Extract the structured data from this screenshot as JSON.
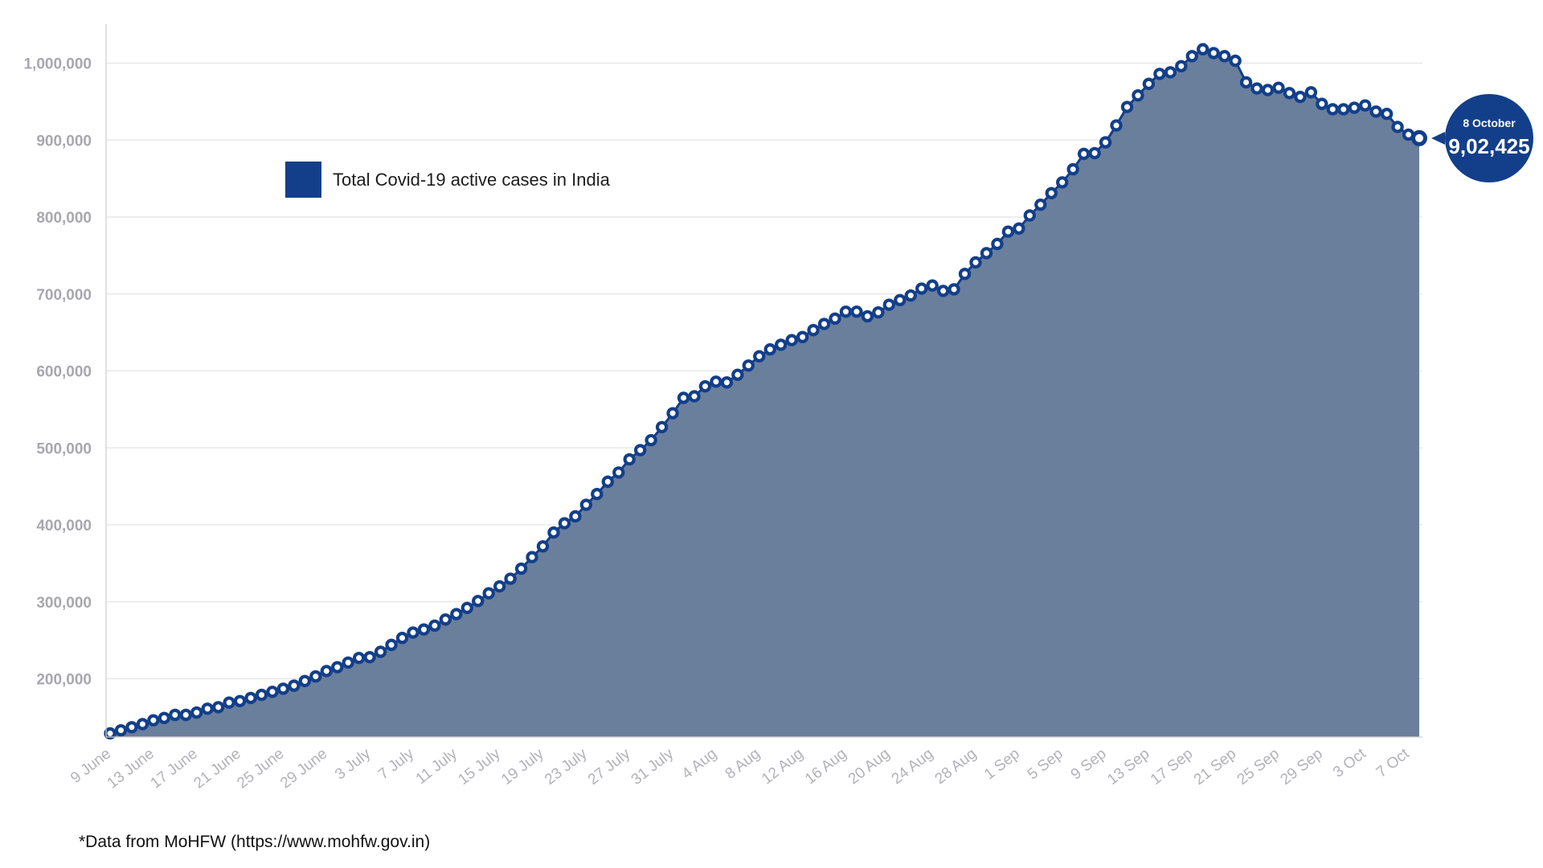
{
  "chart_data": {
    "type": "area",
    "title": "",
    "xlabel": "",
    "ylabel": "",
    "ylim": [
      120000,
      1050000
    ],
    "y_ticks": [
      200000,
      300000,
      400000,
      500000,
      600000,
      700000,
      800000,
      900000,
      1000000
    ],
    "y_tick_labels": [
      "200,000",
      "300,000",
      "400,000",
      "500,000",
      "600,000",
      "700,000",
      "800,000",
      "900,000",
      "1,000,000"
    ],
    "grid": "horizontal",
    "legend": "top-left",
    "x_tick_labels": [
      "9 June",
      "13 June",
      "17 June",
      "21 June",
      "25 June",
      "29 June",
      "3 July",
      "7 July",
      "11 July",
      "15 July",
      "19 July",
      "23 July",
      "27 July",
      "31 July",
      "4 Aug",
      "8 Aug",
      "12 Aug",
      "16 Aug",
      "20 Aug",
      "24 Aug",
      "28 Aug",
      "1 Sep",
      "5 Sep",
      "9 Sep",
      "13 Sep",
      "17 Sep",
      "21 Sep",
      "25 Sep",
      "29 Sep",
      "3 Oct",
      "7 Oct"
    ],
    "x_start": "9 June",
    "x_end": "8 October",
    "series": [
      {
        "name": "Total Covid-19 active cases in India",
        "color": "#133f8a",
        "fill": "#6a7f9c",
        "values": [
          129000,
          133000,
          137000,
          141000,
          146000,
          149000,
          153000,
          153000,
          156000,
          161000,
          163000,
          169000,
          171000,
          175000,
          179000,
          183000,
          187000,
          191000,
          197000,
          203000,
          210000,
          215000,
          221000,
          227000,
          228000,
          235000,
          244000,
          253000,
          260000,
          264000,
          269000,
          277000,
          284000,
          292000,
          301000,
          311000,
          320000,
          330000,
          343000,
          358000,
          372000,
          390000,
          402000,
          411000,
          426000,
          440000,
          456000,
          468000,
          485000,
          497000,
          510000,
          527000,
          545000,
          565000,
          567000,
          580000,
          586000,
          585000,
          595000,
          607000,
          619000,
          628000,
          634000,
          640000,
          644000,
          653000,
          661000,
          668000,
          677000,
          677000,
          671000,
          676000,
          686000,
          692000,
          698000,
          707000,
          711000,
          704000,
          706000,
          726000,
          741000,
          753000,
          765000,
          781000,
          785000,
          802000,
          816000,
          831000,
          845000,
          862000,
          882000,
          883000,
          897000,
          919000,
          943000,
          958000,
          973000,
          986000,
          988000,
          996000,
          1009000,
          1018000,
          1013000,
          1009000,
          1003000,
          975000,
          967000,
          965000,
          968000,
          961000,
          956000,
          962000,
          947000,
          940000,
          940000,
          942000,
          945000,
          937000,
          934000,
          917000,
          907000,
          902425
        ]
      }
    ],
    "callout": {
      "date": "8 October",
      "value_label": "9,02,425",
      "value": 902425,
      "color": "#133f8a"
    },
    "source_note": "*Data from MoHFW (https://www.mohfw.gov.in)",
    "colors": {
      "grid": "#e4e4e4",
      "axis": "#d0d0d0",
      "tick_text": "#a7a7ad"
    }
  }
}
